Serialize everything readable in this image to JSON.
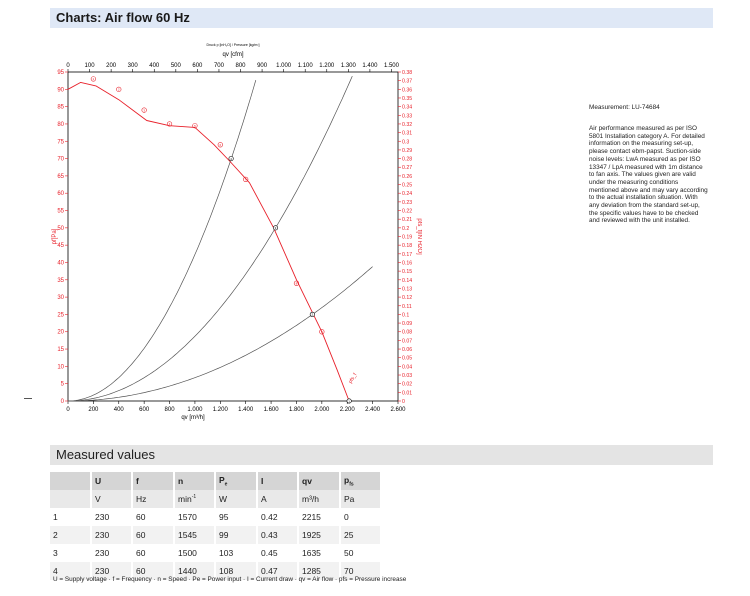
{
  "header": {
    "title": "Charts: Air flow 60 Hz"
  },
  "side": {
    "measurement_id": "Measurement: LU-74684",
    "info": "Air performance measured as per ISO 5801 Installation category A. For detailed information on the measuring set-up, please contact ebm-papst. Suction-side noise levels: LwA measured as per ISO 13347 / LpA measured with 1m distance to fan axis. The values given are valid under the measuring conditions mentioned above and may vary according to the actual installation situation. With any deviation from the standard set-up, the specific values have to be checked and reviewed with the unit installed."
  },
  "chart_data": {
    "type": "line",
    "top_axis_note": "Druck p [inH₂O] / Pressure [kg/m²]",
    "top_axis_label": "qv [cfm]",
    "top_ticks": [
      "0",
      "100",
      "200",
      "300",
      "400",
      "500",
      "600",
      "700",
      "800",
      "900",
      "1.000",
      "1.100",
      "1.200",
      "1.300",
      "1.400",
      "1.500"
    ],
    "xlabel": "qv [m³/h]",
    "x_ticks": [
      "0",
      "200",
      "400",
      "600",
      "800",
      "1.000",
      "1.200",
      "1.400",
      "1.600",
      "1.800",
      "2.000",
      "2.200",
      "2.400",
      "2.600"
    ],
    "xlim": [
      0,
      2600
    ],
    "ylabel_left": "pf[Pa]",
    "ylim_left": [
      0,
      95
    ],
    "y_ticks_left": [
      "0",
      "5",
      "10",
      "15",
      "20",
      "25",
      "30",
      "35",
      "40",
      "45",
      "50",
      "55",
      "60",
      "65",
      "70",
      "75",
      "80",
      "85",
      "90",
      "95"
    ],
    "ylabel_right": "pfs_f[IN H2O]",
    "ylim_right": [
      0,
      0.38
    ],
    "y_ticks_right": [
      "0",
      "0.01",
      "0.02",
      "0.03",
      "0.04",
      "0.05",
      "0.06",
      "0.07",
      "0.08",
      "0.09",
      "0.1",
      "0.11",
      "0.12",
      "0.13",
      "0.14",
      "0.15",
      "0.16",
      "0.17",
      "0.18",
      "0.19",
      "0.2",
      "0.21",
      "0.22",
      "0.23",
      "0.24",
      "0.25",
      "0.26",
      "0.27",
      "0.28",
      "0.29",
      "0.3",
      "0.31",
      "0.32",
      "0.33",
      "0.34",
      "0.35",
      "0.36",
      "0.37",
      "0.38"
    ],
    "fan_curve": {
      "x": [
        0,
        100,
        220,
        400,
        620,
        800,
        1000,
        1150,
        1280,
        1430,
        1620,
        1800,
        2000,
        2120,
        2215
      ],
      "y": [
        90,
        92,
        91,
        87,
        81,
        79.5,
        79,
        74,
        69,
        63,
        50,
        35,
        20,
        9,
        0
      ]
    },
    "markers": [
      {
        "x": 200,
        "y": 93,
        "label": "1"
      },
      {
        "x": 400,
        "y": 90,
        "label": "2"
      },
      {
        "x": 600,
        "y": 84,
        "label": "3"
      },
      {
        "x": 800,
        "y": 80,
        "label": "4"
      },
      {
        "x": 1000,
        "y": 79.5,
        "label": "5"
      },
      {
        "x": 1200,
        "y": 74,
        "label": "6"
      },
      {
        "x": 1400,
        "y": 64,
        "label": "7"
      },
      {
        "x": 1800,
        "y": 34,
        "label": "8"
      },
      {
        "x": 2000,
        "y": 20,
        "label": "9"
      }
    ],
    "operating_points": [
      {
        "x": 2215,
        "y": 0,
        "label": "1"
      },
      {
        "x": 1925,
        "y": 25,
        "label": "2"
      },
      {
        "x": 1635,
        "y": 50,
        "label": "3"
      },
      {
        "x": 1285,
        "y": 70,
        "label": "4"
      }
    ],
    "end_label": "pfs_f",
    "system_curves": [
      {
        "k": 4.23e-05,
        "xmax": 1480
      },
      {
        "k": 1.87e-05,
        "xmax": 2250
      },
      {
        "k": 6.74e-06,
        "xmax": 2400
      }
    ]
  },
  "measured": {
    "title": "Measured values",
    "headers": [
      "",
      "U",
      "f",
      "n",
      "P",
      "I",
      "qv",
      "p"
    ],
    "header_subs": [
      "",
      "",
      "",
      "",
      "e",
      "",
      "",
      "fs"
    ],
    "units": [
      "",
      "V",
      "Hz",
      "min",
      "W",
      "A",
      "m³/h",
      "Pa"
    ],
    "unit_sups": [
      "",
      "",
      "",
      "-1",
      "",
      "",
      "",
      ""
    ],
    "rows": [
      [
        "1",
        "230",
        "60",
        "1570",
        "95",
        "0.42",
        "2215",
        "0"
      ],
      [
        "2",
        "230",
        "60",
        "1545",
        "99",
        "0.43",
        "1925",
        "25"
      ],
      [
        "3",
        "230",
        "60",
        "1500",
        "103",
        "0.45",
        "1635",
        "50"
      ],
      [
        "4",
        "230",
        "60",
        "1440",
        "108",
        "0.47",
        "1285",
        "70"
      ]
    ],
    "legend": "U = Supply voltage · f = Frequency · n = Speed · Pe = Power input · I = Current draw · qv = Air flow · pfs = Pressure increase"
  }
}
